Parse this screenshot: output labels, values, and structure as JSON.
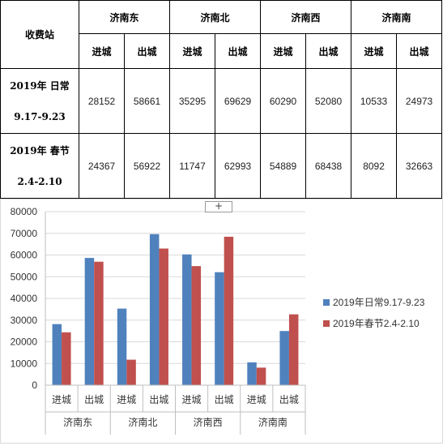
{
  "table": {
    "corner_label": "收费站",
    "stations": [
      "济南东",
      "济南北",
      "济南西",
      "济南南"
    ],
    "directions": [
      "进城",
      "出城"
    ],
    "rows": [
      {
        "label_line1": "2019年 日常",
        "label_line2": "9.17-9.23",
        "values": [
          "28152",
          "58661",
          "35295",
          "69629",
          "60290",
          "52080",
          "10533",
          "24973"
        ]
      },
      {
        "label_line1": "2019年 春节",
        "label_line2": "2.4-2.10",
        "values": [
          "24367",
          "56922",
          "11747",
          "62993",
          "54889",
          "68438",
          "8092",
          "32663"
        ]
      }
    ]
  },
  "plus_label": "+",
  "chart_data": {
    "type": "bar",
    "groups": [
      "济南东",
      "济南北",
      "济南西",
      "济南南"
    ],
    "categories": [
      "进城",
      "出城",
      "进城",
      "出城",
      "进城",
      "出城",
      "进城",
      "出城"
    ],
    "series": [
      {
        "name": "2019年日常9.17-9.23",
        "color": "#4f81bd",
        "values": [
          28152,
          58661,
          35295,
          69629,
          60290,
          52080,
          10533,
          24973
        ]
      },
      {
        "name": "2019年春节2.4-2.10",
        "color": "#c0504d",
        "values": [
          24367,
          56922,
          11747,
          62993,
          54889,
          68438,
          8092,
          32663
        ]
      }
    ],
    "yticks": [
      0,
      10000,
      20000,
      30000,
      40000,
      50000,
      60000,
      70000,
      80000
    ],
    "ylim": [
      0,
      80000
    ],
    "grid": true,
    "legend_position": "right"
  }
}
